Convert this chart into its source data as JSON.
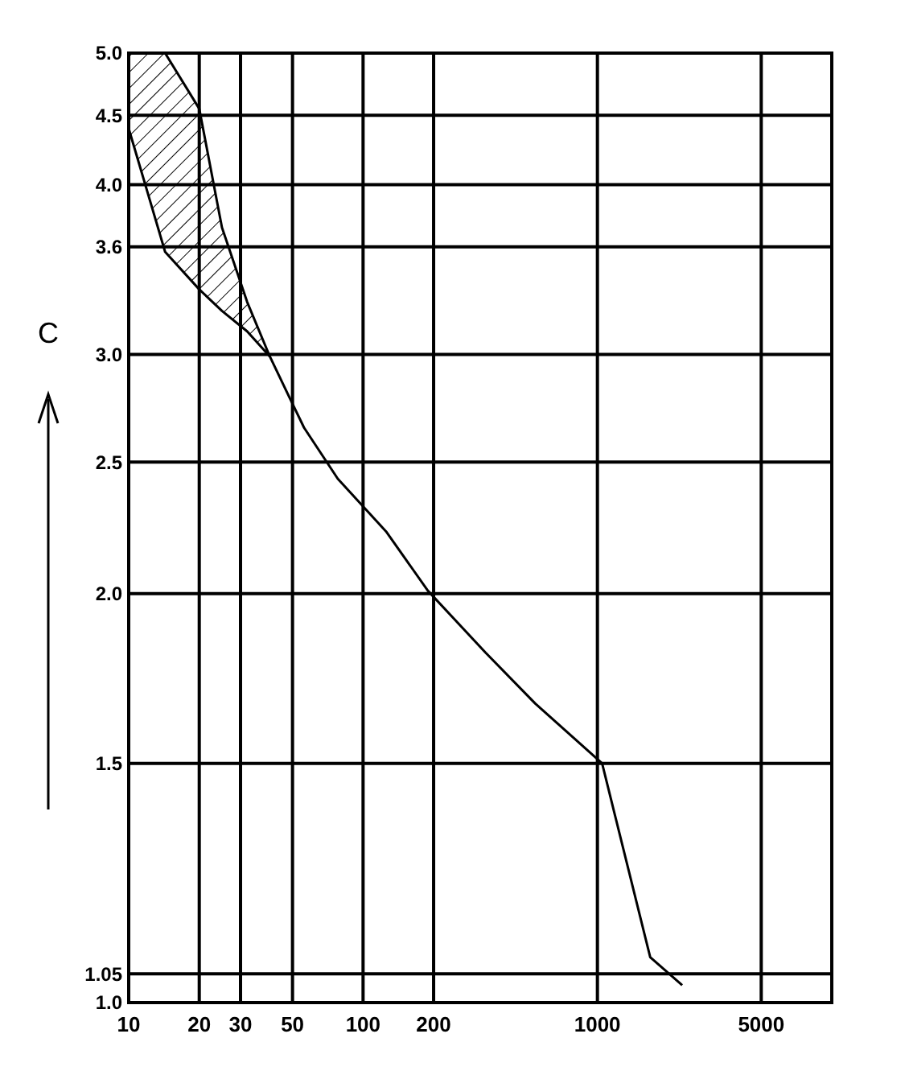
{
  "chart_data": {
    "type": "line",
    "ylabel": "C",
    "log": "xy",
    "grid": true,
    "line_style": "solid",
    "marker": "none",
    "xlim": [
      10,
      10000
    ],
    "ylim": [
      1,
      5
    ],
    "xticks": [
      10,
      20,
      30,
      50,
      100,
      200,
      1000,
      5000
    ],
    "yticks": [
      {
        "value": 5,
        "label": "5.0"
      },
      {
        "value": 4.5,
        "label": "4.5"
      },
      {
        "value": 4,
        "label": "4.0"
      },
      {
        "value": 3.6,
        "label": "3.6"
      },
      {
        "value": 3,
        "label": "3.0"
      },
      {
        "value": 2.5,
        "label": "2.5"
      },
      {
        "value": 2,
        "label": "2.0"
      },
      {
        "value": 1.5,
        "label": "1.5"
      },
      {
        "value": 1.05,
        "label": "1.05"
      },
      {
        "value": 1,
        "label": "1.0"
      }
    ],
    "x": [
      10,
      14.3,
      20,
      25,
      32,
      40,
      48,
      56,
      78,
      126,
      189,
      333,
      543,
      1047,
      1680,
      2300
    ],
    "series": [
      {
        "color": "#000000",
        "values": [
          4.4,
          3.57,
          3.35,
          3.23,
          3.12,
          2.99,
          2.8,
          2.65,
          2.43,
          2.22,
          2.01,
          1.81,
          1.66,
          1.5,
          1.08,
          1.03
        ],
        "lower": [
          4.4,
          3.57,
          3.35,
          3.23,
          3.12,
          2.99,
          null,
          null,
          null,
          null,
          null,
          null,
          null,
          null,
          null,
          null
        ],
        "upper": [
          5,
          5,
          4.55,
          3.72,
          3.28,
          2.99,
          null,
          null,
          null,
          null,
          null,
          null,
          null,
          null,
          null,
          null
        ]
      },
      {
        "color": "#000000",
        "x": [
          14.3,
          20,
          25,
          32,
          40
        ],
        "values": [
          5,
          4.55,
          3.72,
          3.28,
          2.99
        ]
      }
    ]
  }
}
